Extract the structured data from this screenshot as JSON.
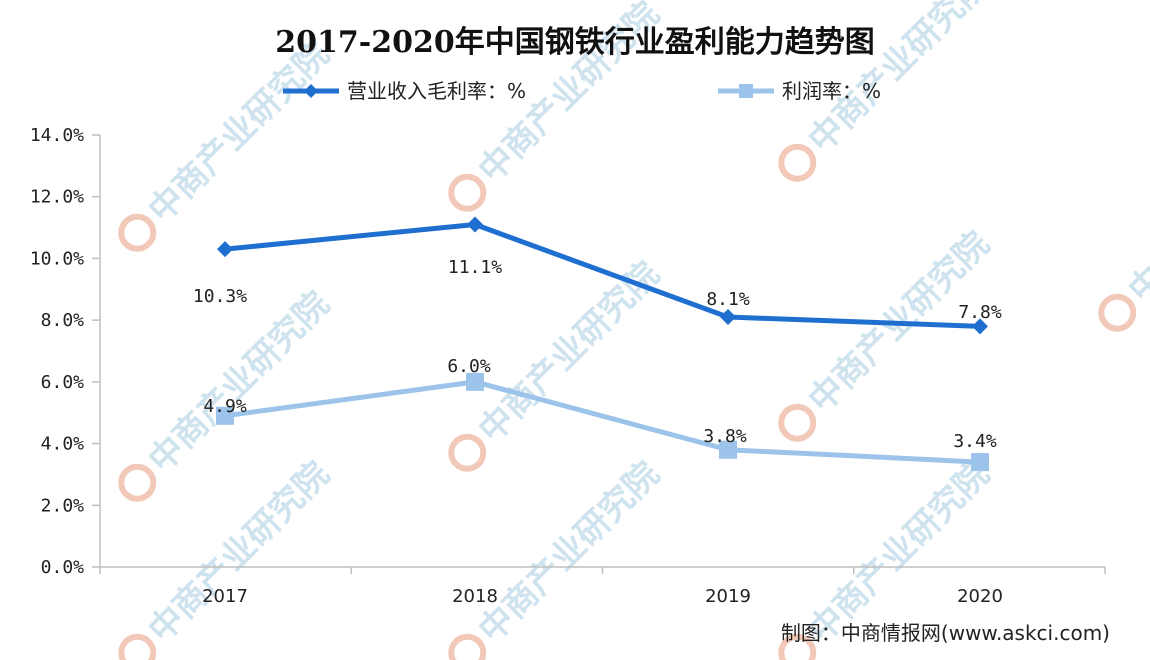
{
  "watermark": {
    "text": "中商产业研究院"
  },
  "source": "制图：中商情报网(www.askci.com)",
  "colors": {
    "series1": "#1f6fd1",
    "series2": "#9cc3ea",
    "axis": "#bfbfbf",
    "text": "#222222"
  },
  "chart_data": {
    "type": "line",
    "title": "2017-2020年中国钢铁行业盈利能力趋势图",
    "categories": [
      "2017",
      "2018",
      "2019",
      "2020"
    ],
    "ylim": [
      0,
      14
    ],
    "yticks": [
      0,
      2,
      4,
      6,
      8,
      10,
      12,
      14
    ],
    "ytick_labels": [
      "0.0%",
      "2.0%",
      "4.0%",
      "6.0%",
      "8.0%",
      "10.0%",
      "12.0%",
      "14.0%"
    ],
    "grid": false,
    "legend": "top",
    "series": [
      {
        "name": "营业收入毛利率：%",
        "marker": "diamond",
        "values": [
          10.3,
          11.1,
          8.1,
          7.8
        ],
        "labels": [
          "10.3%",
          "11.1%",
          "8.1%",
          "7.8%"
        ]
      },
      {
        "name": "利润率：%",
        "marker": "square",
        "values": [
          4.9,
          6.0,
          3.8,
          3.4
        ],
        "labels": [
          "4.9%",
          "6.0%",
          "3.8%",
          "3.4%"
        ]
      }
    ]
  }
}
